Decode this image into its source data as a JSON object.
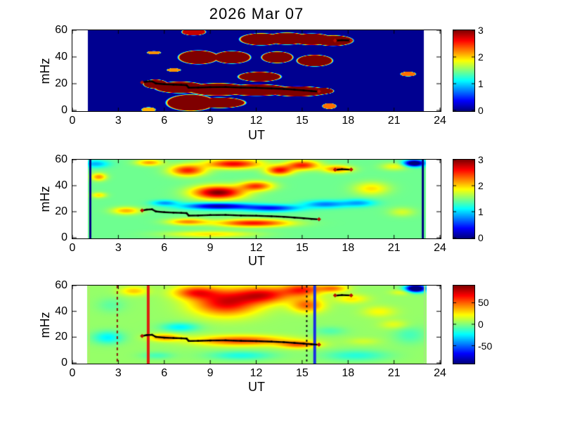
{
  "title": "2026 Mar 07",
  "chart_data": {
    "type": "heatmap",
    "title": "2026 Mar 07",
    "colormap": "jet",
    "x": {
      "label": "UT",
      "ticks": [
        0,
        3,
        6,
        9,
        12,
        15,
        18,
        21,
        24
      ],
      "range": [
        0,
        24
      ]
    },
    "y": {
      "label": "mHz",
      "ticks": [
        0,
        20,
        40,
        60
      ],
      "range": [
        0,
        60
      ]
    },
    "panels": [
      {
        "name": "wavelet-power-top",
        "data_extent": [
          1.0,
          22.9
        ],
        "value_range": [
          0,
          3
        ],
        "colorbar": {
          "ticks": [
            0,
            1,
            2,
            3
          ]
        },
        "field": {
          "mode": "max",
          "background": 0.05,
          "edge": 0.15,
          "blobs": [
            [
              5.4,
              20,
              0.85,
              3.6,
              3.35
            ],
            [
              7.0,
              17.5,
              1.8,
              4.6,
              3.35
            ],
            [
              9.5,
              16,
              2.2,
              5,
              3.35
            ],
            [
              12.0,
              15.5,
              2.4,
              4.6,
              3.35
            ],
            [
              14.7,
              14.5,
              2.2,
              4,
              3.35
            ],
            [
              16.2,
              14.8,
              0.9,
              2.6,
              3.35
            ],
            [
              7.7,
              6,
              1.7,
              6.6,
              3.35
            ],
            [
              9.6,
              6,
              1.8,
              4.2,
              3.35
            ],
            [
              8.2,
              40,
              1.4,
              5.5,
              3.35
            ],
            [
              10.4,
              40,
              1.3,
              5,
              3.35
            ],
            [
              13.35,
              40,
              1.1,
              4.6,
              3.35
            ],
            [
              15.8,
              37.5,
              1.25,
              4.6,
              3.35
            ],
            [
              12.2,
              25.5,
              1.5,
              3.9,
              3.35
            ],
            [
              12.3,
              53.5,
              1.5,
              4.8,
              3.35
            ],
            [
              14.0,
              54,
              1.5,
              4.8,
              3.35
            ],
            [
              15.6,
              53.5,
              1.5,
              4.6,
              3.35
            ],
            [
              17.0,
              52.5,
              1.4,
              4.2,
              3.35
            ],
            [
              7.9,
              59,
              0.85,
              2.8,
              2.8
            ],
            [
              5.3,
              43.5,
              0.5,
              1.3,
              2.2
            ],
            [
              6.6,
              30.5,
              0.5,
              1.4,
              2.2
            ],
            [
              21.9,
              27.5,
              0.55,
              1.9,
              2.3
            ],
            [
              16.75,
              3.5,
              0.5,
              2.3,
              2.3
            ],
            [
              4.95,
              0.8,
              0.5,
              2.0,
              2.1
            ]
          ]
        },
        "vlines": []
      },
      {
        "name": "wavelet-power-middle",
        "data_extent": [
          1.0,
          23.05
        ],
        "value_range": [
          0,
          3
        ],
        "colorbar": {
          "ticks": [
            0,
            1,
            2,
            3
          ]
        },
        "field": {
          "mode": "sum",
          "background": 1.45,
          "falloff": 2.0,
          "blobs": [
            [
              9.5,
              35,
              2.3,
              7,
              1.55
            ],
            [
              12,
              40,
              1.5,
              5,
              1.0
            ],
            [
              7.5,
              52,
              1.6,
              6,
              1.1
            ],
            [
              10.5,
              57,
              2.5,
              5,
              1.2
            ],
            [
              13.5,
              52,
              1.2,
              5,
              1.15
            ],
            [
              15,
              56,
              1.5,
              5,
              1.1
            ],
            [
              17.3,
              53,
              1.3,
              4,
              0.85
            ],
            [
              5,
              58,
              1.2,
              3.5,
              0.7
            ],
            [
              1.7,
              47,
              0.7,
              4,
              0.75
            ],
            [
              1.7,
              33,
              0.7,
              3,
              0.5
            ],
            [
              3.5,
              21,
              1.3,
              4,
              0.65
            ],
            [
              11.8,
              11.5,
              3.3,
              4,
              1.15
            ],
            [
              7.5,
              12.5,
              1.8,
              3.5,
              0.75
            ],
            [
              9,
              3,
              4,
              3.5,
              0.5
            ],
            [
              19.5,
              38,
              1.6,
              7,
              0.5
            ],
            [
              21,
              55,
              1.2,
              4,
              0.4
            ],
            [
              21.5,
              20,
              1.2,
              5,
              0.3
            ],
            [
              9.5,
              24.5,
              3,
              3.5,
              -1.35
            ],
            [
              13,
              23,
              2.5,
              3.5,
              -1.0
            ],
            [
              16.5,
              26,
              2,
              4,
              -0.7
            ],
            [
              18.7,
              27,
              1.5,
              4,
              -0.55
            ],
            [
              6,
              27,
              1.2,
              3,
              -0.6
            ],
            [
              1.5,
              57,
              1.2,
              4,
              -0.55
            ],
            [
              22.3,
              57.5,
              0.9,
              3.5,
              -1.9
            ]
          ]
        },
        "vlines": [
          {
            "ut": 1.17,
            "color": "#000080",
            "width": 3
          },
          {
            "ut": 22.88,
            "color": "#000080",
            "width": 3
          }
        ]
      },
      {
        "name": "power-difference-bottom",
        "data_extent": [
          0.95,
          23.1
        ],
        "value_range": [
          -90,
          90
        ],
        "colorbar": {
          "ticks": [
            50,
            0,
            -50
          ]
        },
        "field": {
          "mode": "sum",
          "background": 4,
          "falloff": 2.0,
          "blobs": [
            [
              10,
              47,
              3,
              14,
              68
            ],
            [
              12.5,
              53,
              2.5,
              9,
              60
            ],
            [
              8,
              55,
              2,
              7,
              50
            ],
            [
              15,
              57,
              1.8,
              7,
              55
            ],
            [
              15.3,
              45,
              1.5,
              8,
              45
            ],
            [
              17,
              58,
              1.3,
              4,
              40
            ],
            [
              11,
              17.5,
              4.2,
              5.5,
              52
            ],
            [
              6,
              20,
              1.5,
              4,
              38
            ],
            [
              14.8,
              14.5,
              1.8,
              4,
              45
            ],
            [
              4,
              56,
              1.3,
              5,
              28
            ],
            [
              18.2,
              50,
              1.5,
              5,
              22
            ],
            [
              20,
              40,
              1.5,
              6,
              18
            ],
            [
              21.5,
              55,
              1,
              3,
              16
            ],
            [
              21,
              30,
              1.3,
              5,
              15
            ],
            [
              19,
              17,
              1.5,
              4,
              10
            ],
            [
              2.3,
              20,
              1.4,
              7,
              -28
            ],
            [
              7,
              28,
              1.7,
              5,
              -28
            ],
            [
              11,
              6,
              3,
              5,
              -22
            ],
            [
              5.5,
              6,
              1.5,
              4,
              -14
            ],
            [
              18.5,
              6,
              3,
              6,
              -20
            ],
            [
              22,
              22,
              1.5,
              10,
              -14
            ],
            [
              16.8,
              25,
              1.5,
              5,
              -12
            ],
            [
              22.4,
              58,
              0.9,
              4,
              -130
            ],
            [
              2.5,
              45,
              1.3,
              8,
              -10
            ]
          ]
        },
        "vlines": [
          {
            "ut": 1.08,
            "color": "#b4ec6c",
            "width": 2
          },
          {
            "ut": 2.93,
            "color": "#8b1808",
            "width": 2,
            "dash": [
              4,
              4
            ]
          },
          {
            "ut": 4.95,
            "color": "#dd1c10",
            "width": 4
          },
          {
            "ut": 15.3,
            "color": "#141414",
            "width": 2,
            "dash": [
              3,
              4
            ]
          },
          {
            "ut": 15.82,
            "color": "#1a30e0",
            "width": 4
          },
          {
            "ut": 23.0,
            "color": "#a8e884",
            "width": 2
          }
        ]
      }
    ],
    "traces": [
      {
        "name": "ridge-main",
        "color": "#000000",
        "points": [
          [
            4.6,
            21.0
          ],
          [
            4.85,
            21.6
          ],
          [
            5.2,
            21.8
          ],
          [
            5.45,
            20.2
          ],
          [
            6.0,
            19.6
          ],
          [
            6.6,
            19.3
          ],
          [
            7.1,
            19.1
          ],
          [
            7.45,
            18.9
          ],
          [
            7.6,
            17.0
          ],
          [
            8.2,
            17.1
          ],
          [
            9.0,
            17.4
          ],
          [
            10.0,
            17.5
          ],
          [
            11.0,
            17.1
          ],
          [
            12.0,
            16.9
          ],
          [
            13.0,
            16.5
          ],
          [
            13.8,
            16.1
          ],
          [
            14.5,
            15.5
          ],
          [
            15.1,
            15.0
          ],
          [
            15.6,
            14.5
          ],
          [
            15.95,
            14.2
          ]
        ]
      },
      {
        "name": "ridge-secondary",
        "color": "#000000",
        "points": [
          [
            17.25,
            52.3
          ],
          [
            17.6,
            52.6
          ],
          [
            18.1,
            52.4
          ]
        ]
      }
    ],
    "markers": {
      "color": "#b51000",
      "points": [
        [
          4.55,
          20.9
        ],
        [
          16.1,
          14.2
        ],
        [
          17.15,
          52.3
        ],
        [
          18.2,
          52.4
        ]
      ]
    }
  }
}
